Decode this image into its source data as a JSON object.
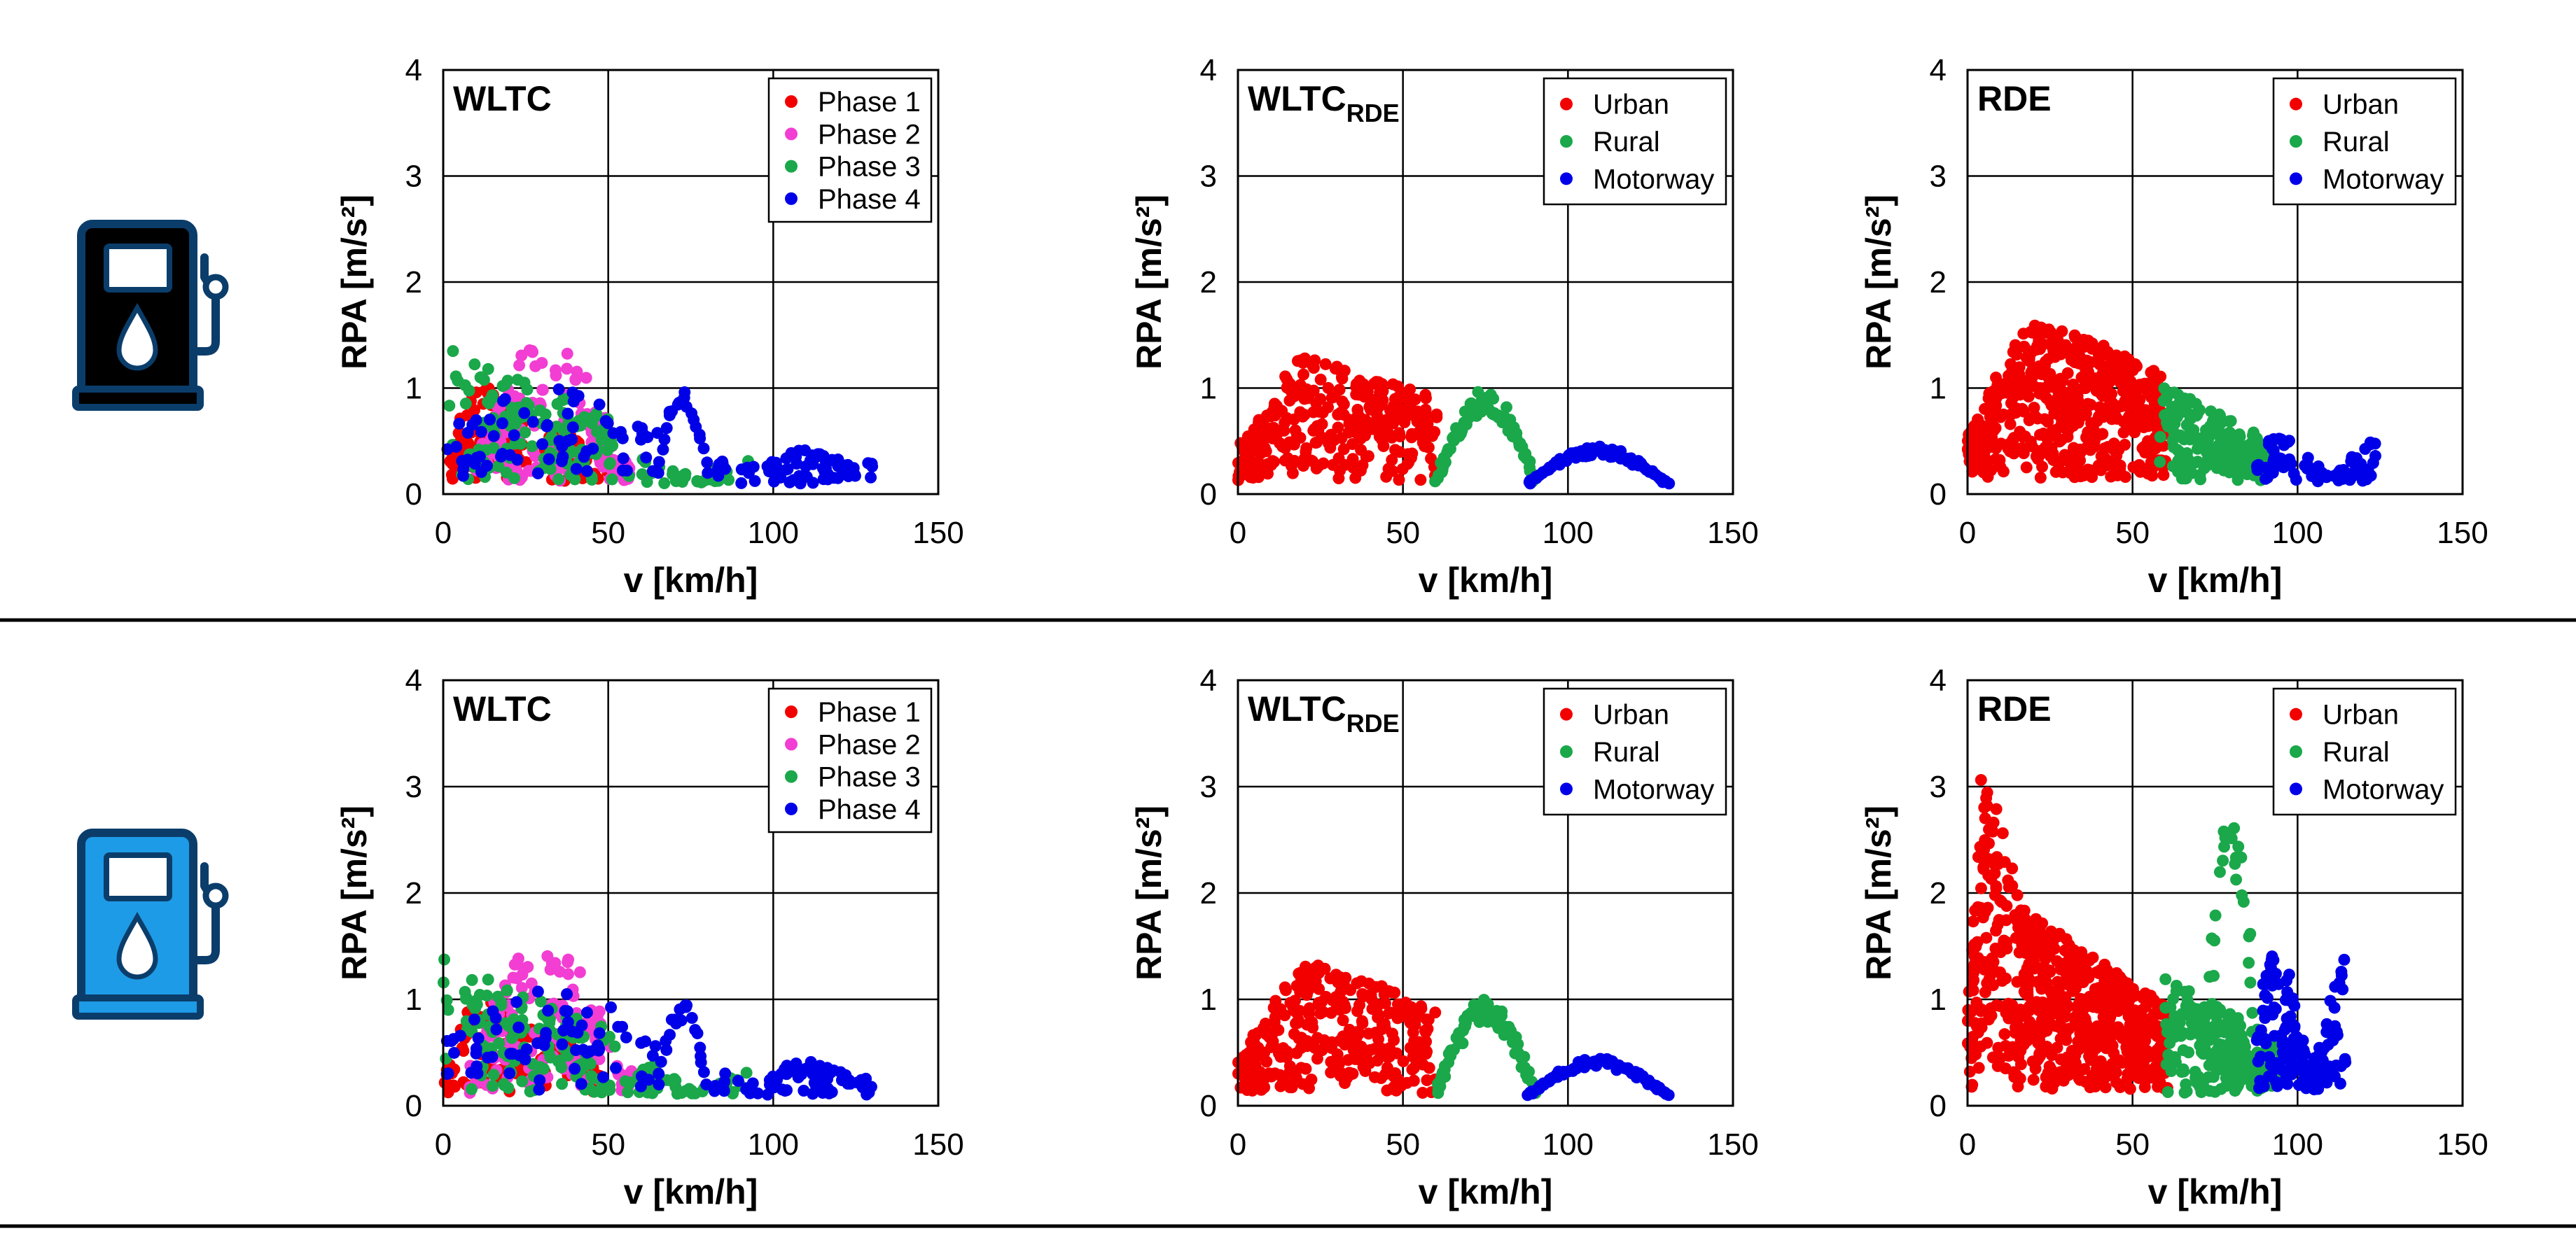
{
  "colors": {
    "red": "#f20000",
    "magenta": "#f23ed2",
    "green": "#1aa84a",
    "blue": "#0000e8",
    "pump_dark": "#0b3d6b",
    "pump_dark_fill": "#000000",
    "pump_light_fill": "#1e9be6",
    "pump_light_stroke": "#0b3d6b"
  },
  "rows": [
    {
      "icon": "fuel-pump-diesel-icon",
      "icon_variant": "dark",
      "charts": [
        {
          "title": "WLTC",
          "title_sub": "",
          "legend": [
            "Phase 1",
            "Phase 2",
            "Phase 3",
            "Phase 4"
          ],
          "legend_colors": [
            "red",
            "magenta",
            "green",
            "blue"
          ]
        },
        {
          "title": "WLTC",
          "title_sub": "RDE",
          "legend": [
            "Urban",
            "Rural",
            "Motorway"
          ],
          "legend_colors": [
            "red",
            "green",
            "blue"
          ]
        },
        {
          "title": "RDE",
          "title_sub": "",
          "legend": [
            "Urban",
            "Rural",
            "Motorway"
          ],
          "legend_colors": [
            "red",
            "green",
            "blue"
          ]
        }
      ]
    },
    {
      "icon": "fuel-pump-petrol-icon",
      "icon_variant": "light",
      "charts": [
        {
          "title": "WLTC",
          "title_sub": "",
          "legend": [
            "Phase 1",
            "Phase 2",
            "Phase 3",
            "Phase 4"
          ],
          "legend_colors": [
            "red",
            "magenta",
            "green",
            "blue"
          ]
        },
        {
          "title": "WLTC",
          "title_sub": "RDE",
          "legend": [
            "Urban",
            "Rural",
            "Motorway"
          ],
          "legend_colors": [
            "red",
            "green",
            "blue"
          ]
        },
        {
          "title": "RDE",
          "title_sub": "",
          "legend": [
            "Urban",
            "Rural",
            "Motorway"
          ],
          "legend_colors": [
            "red",
            "green",
            "blue"
          ]
        }
      ]
    }
  ],
  "chart_data": [
    {
      "id": "diesel-wltc",
      "type": "scatter",
      "title": "WLTC",
      "xlabel": "v [km/h]",
      "ylabel": "RPA [m/s²]",
      "xlim": [
        0,
        150
      ],
      "ylim": [
        0,
        4
      ],
      "xticks": [
        0,
        50,
        100,
        150
      ],
      "yticks": [
        0,
        1,
        2,
        3,
        4
      ],
      "grid": true,
      "legend_position": "top-right",
      "series": [
        {
          "name": "Phase 1",
          "color": "red",
          "clusters": [
            [
              2,
              25,
              5,
              0.12,
              1.3,
              95,
              11
            ],
            [
              30,
              50,
              6,
              0.12,
              0.8,
              30,
              12
            ]
          ]
        },
        {
          "name": "Phase 2",
          "color": "magenta",
          "clusters": [
            [
              10,
              57,
              1,
              0.12,
              1.55,
              140,
              21
            ]
          ]
        },
        {
          "name": "Phase 3",
          "color": "green",
          "clusters": [
            [
              2,
              52,
              2,
              0.12,
              1.4,
              130,
              31
            ],
            [
              55,
              92,
              3,
              0.1,
              0.4,
              40,
              32
            ]
          ]
        },
        {
          "name": "Phase 4",
          "color": "blue",
          "clusters": [
            [
              0,
              65,
              8,
              0.15,
              1.0,
              70,
              41
            ],
            [
              65,
              80,
              7,
              0.2,
              1.0,
              22,
              42
            ],
            [
              82,
              95,
              4,
              0.1,
              0.4,
              12,
              43
            ],
            [
              98,
              130,
              4,
              0.1,
              0.45,
              65,
              44
            ]
          ]
        }
      ]
    },
    {
      "id": "diesel-wltc-rde",
      "type": "scatter",
      "title": "WLTC_RDE",
      "xlabel": "v [km/h]",
      "ylabel": "RPA [m/s²]",
      "xlim": [
        0,
        150
      ],
      "ylim": [
        0,
        4
      ],
      "xticks": [
        0,
        50,
        100,
        150
      ],
      "yticks": [
        0,
        1,
        2,
        3,
        4
      ],
      "grid": true,
      "legend_position": "top-right",
      "series": [
        {
          "name": "Urban",
          "color": "red",
          "clusters": [
            [
              0,
              60,
              5,
              0.12,
              1.55,
              320,
              51
            ]
          ]
        },
        {
          "name": "Rural",
          "color": "green",
          "clusters": [
            [
              60,
              90,
              7,
              0.12,
              0.98,
              85,
              52
            ]
          ]
        },
        {
          "name": "Motorway",
          "color": "blue",
          "clusters": [
            [
              88,
              130,
              7,
              0.1,
              0.45,
              75,
              53
            ]
          ]
        }
      ]
    },
    {
      "id": "diesel-rde",
      "type": "scatter",
      "title": "RDE",
      "xlabel": "v [km/h]",
      "ylabel": "RPA [m/s²]",
      "xlim": [
        0,
        150
      ],
      "ylim": [
        0,
        4
      ],
      "xticks": [
        0,
        50,
        100,
        150
      ],
      "yticks": [
        0,
        1,
        2,
        3,
        4
      ],
      "grid": true,
      "legend_position": "top-right",
      "series": [
        {
          "name": "Urban",
          "color": "red",
          "clusters": [
            [
              0,
              60,
              5,
              0.15,
              1.95,
              560,
              61
            ]
          ]
        },
        {
          "name": "Rural",
          "color": "green",
          "clusters": [
            [
              58,
              90,
              2,
              0.12,
              1.05,
              170,
              62
            ]
          ]
        },
        {
          "name": "Motorway",
          "color": "blue",
          "clusters": [
            [
              88,
              125,
              3,
              0.12,
              0.55,
              85,
              63
            ]
          ]
        }
      ]
    },
    {
      "id": "petrol-wltc",
      "type": "scatter",
      "title": "WLTC",
      "xlabel": "v [km/h]",
      "ylabel": "RPA [m/s²]",
      "xlim": [
        0,
        150
      ],
      "ylim": [
        0,
        4
      ],
      "xticks": [
        0,
        50,
        100,
        150
      ],
      "yticks": [
        0,
        1,
        2,
        3,
        4
      ],
      "grid": true,
      "legend_position": "top-right",
      "series": [
        {
          "name": "Phase 1",
          "color": "red",
          "clusters": [
            [
              0,
              30,
              5,
              0.12,
              1.25,
              85,
              71
            ],
            [
              30,
              50,
              6,
              0.12,
              0.8,
              25,
              72
            ]
          ]
        },
        {
          "name": "Phase 2",
          "color": "magenta",
          "clusters": [
            [
              8,
              58,
              1,
              0.12,
              1.6,
              130,
              73
            ]
          ]
        },
        {
          "name": "Phase 3",
          "color": "green",
          "clusters": [
            [
              0,
              52,
              2,
              0.12,
              1.4,
              120,
              74
            ],
            [
              55,
              92,
              3,
              0.1,
              0.42,
              40,
              75
            ]
          ]
        },
        {
          "name": "Phase 4",
          "color": "blue",
          "clusters": [
            [
              0,
              65,
              8,
              0.15,
              1.1,
              70,
              76
            ],
            [
              65,
              80,
              7,
              0.2,
              1.0,
              22,
              77
            ],
            [
              82,
              95,
              4,
              0.1,
              0.4,
              12,
              78
            ],
            [
              98,
              130,
              4,
              0.1,
              0.45,
              65,
              79
            ]
          ]
        }
      ]
    },
    {
      "id": "petrol-wltc-rde",
      "type": "scatter",
      "title": "WLTC_RDE",
      "xlabel": "v [km/h]",
      "ylabel": "RPA [m/s²]",
      "xlim": [
        0,
        150
      ],
      "ylim": [
        0,
        4
      ],
      "xticks": [
        0,
        50,
        100,
        150
      ],
      "yticks": [
        0,
        1,
        2,
        3,
        4
      ],
      "grid": true,
      "legend_position": "top-right",
      "series": [
        {
          "name": "Urban",
          "color": "red",
          "clusters": [
            [
              0,
              60,
              5,
              0.12,
              1.6,
              320,
              81
            ]
          ]
        },
        {
          "name": "Rural",
          "color": "green",
          "clusters": [
            [
              60,
              90,
              7,
              0.12,
              1.0,
              85,
              82
            ]
          ]
        },
        {
          "name": "Motorway",
          "color": "blue",
          "clusters": [
            [
              88,
              130,
              7,
              0.1,
              0.45,
              75,
              83
            ]
          ]
        }
      ]
    },
    {
      "id": "petrol-rde",
      "type": "scatter",
      "title": "RDE",
      "xlabel": "v [km/h]",
      "ylabel": "RPA [m/s²]",
      "xlim": [
        0,
        150
      ],
      "ylim": [
        0,
        4
      ],
      "xticks": [
        0,
        50,
        100,
        150
      ],
      "yticks": [
        0,
        1,
        2,
        3,
        4
      ],
      "grid": true,
      "legend_position": "top-right",
      "series": [
        {
          "name": "Urban",
          "color": "red",
          "clusters": [
            [
              0,
              15,
              5,
              0.15,
              3.75,
              140,
              91
            ],
            [
              15,
              60,
              2,
              0.15,
              1.9,
              520,
              92
            ]
          ]
        },
        {
          "name": "Rural",
          "color": "green",
          "clusters": [
            [
              60,
              95,
              2,
              0.12,
              1.2,
              230,
              93
            ],
            [
              72,
              88,
              7,
              0.5,
              2.75,
              30,
              94
            ]
          ]
        },
        {
          "name": "Motorway",
          "color": "blue",
          "clusters": [
            [
              88,
              115,
              3,
              0.15,
              1.5,
              150,
              95
            ]
          ]
        }
      ]
    }
  ]
}
